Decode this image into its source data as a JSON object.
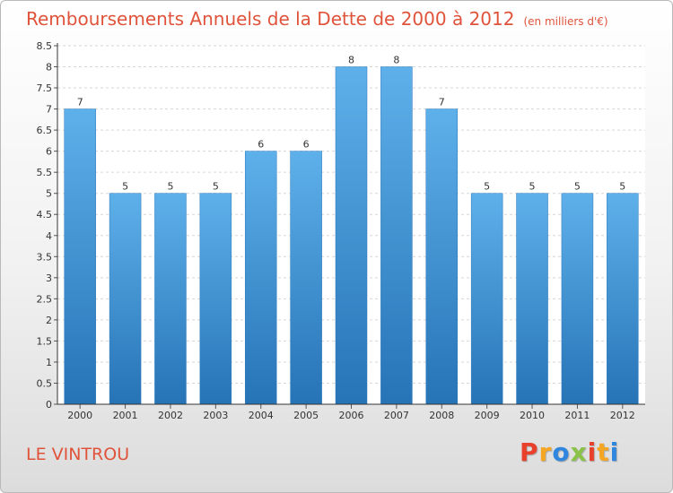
{
  "header": {
    "title": "Remboursements Annuels de la Dette de 2000 à 2012",
    "subtitle": "(en milliers d'€)"
  },
  "footer": {
    "location": "LE VINTROU",
    "brand": "Proxiti",
    "brand_colors": [
      "#e8402a",
      "#f5a623",
      "#2e86de",
      "#8bc34a",
      "#e8402a",
      "#f5a623",
      "#2e86de"
    ]
  },
  "colors": {
    "accent": "#e0533b",
    "bar_top": "#5eb0ea",
    "bar_bottom": "#2673b6",
    "axis": "#333333"
  },
  "chart_data": {
    "type": "bar",
    "title": "Remboursements Annuels de la Dette de 2000 à 2012",
    "subtitle": "(en milliers d'€)",
    "categories": [
      "2000",
      "2001",
      "2002",
      "2003",
      "2004",
      "2005",
      "2006",
      "2007",
      "2008",
      "2009",
      "2010",
      "2011",
      "2012"
    ],
    "values": [
      7,
      5,
      5,
      5,
      6,
      6,
      8,
      8,
      7,
      5,
      5,
      5,
      5
    ],
    "data_labels": [
      "7",
      "5",
      "5",
      "5",
      "6",
      "6",
      "8",
      "8",
      "7",
      "5",
      "5",
      "5",
      "5"
    ],
    "ylim": [
      0,
      8.5
    ],
    "yticks": [
      0,
      0.5,
      1,
      1.5,
      2,
      2.5,
      3,
      3.5,
      4,
      4.5,
      5,
      5.5,
      6,
      6.5,
      7,
      7.5,
      8,
      8.5
    ],
    "ytick_labels": [
      "0",
      "0.5",
      "1",
      "1.5",
      "2",
      "2.5",
      "3",
      "3.5",
      "4",
      "4.5",
      "5",
      "5.5",
      "6",
      "6.5",
      "7",
      "7.5",
      "8",
      "8.5"
    ],
    "grid": true,
    "legend": "none"
  }
}
